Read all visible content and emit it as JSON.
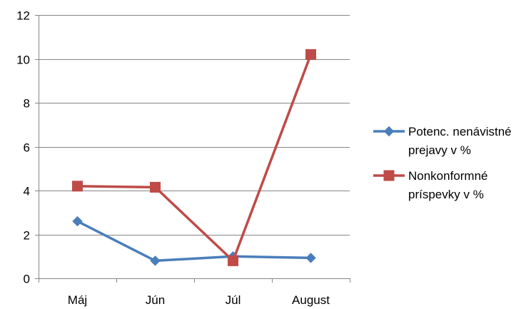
{
  "chart_data": {
    "type": "line",
    "categories": [
      "Máj",
      "Jún",
      "Júl",
      "August"
    ],
    "series": [
      {
        "name": "Potenc. nenávistné prejavy v %",
        "name_lines": [
          "Potenc. nenávistné",
          "prejavy v %"
        ],
        "values": [
          2.6,
          0.8,
          1.0,
          0.93
        ],
        "color": "#4a7ebb",
        "marker": "diamond"
      },
      {
        "name": "Nonkonformné príspevky v %",
        "name_lines": [
          "Nonkonformné",
          "príspevky v %"
        ],
        "values": [
          4.2,
          4.15,
          0.8,
          10.2
        ],
        "color": "#be4b48",
        "marker": "square"
      }
    ],
    "ylim": [
      0,
      12
    ],
    "yticks": [
      0,
      2,
      4,
      6,
      8,
      10,
      12
    ],
    "ytick_labels": [
      "0",
      "2",
      "4",
      "6",
      "8",
      "10",
      "12"
    ],
    "grid": true,
    "legend_position": "right"
  }
}
